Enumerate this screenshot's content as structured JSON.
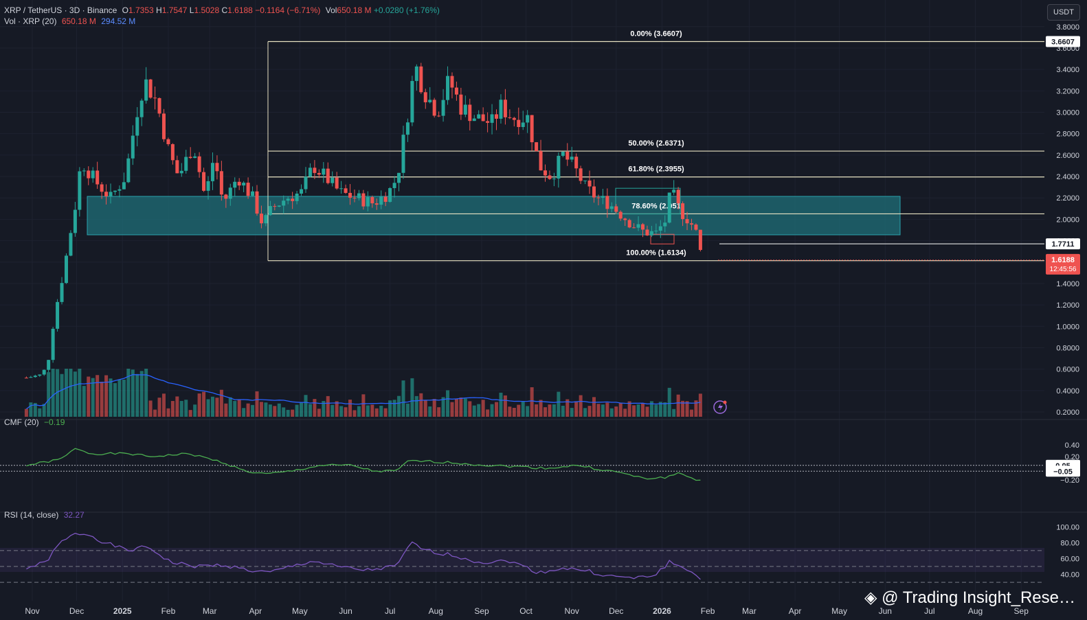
{
  "header": {
    "symbol": "XRP / TetherUS · 3D · Binance",
    "o_label": "O",
    "o": "1.7353",
    "h_label": "H",
    "h": "1.7547",
    "l_label": "L",
    "l": "1.5028",
    "c_label": "C",
    "c": "1.6188",
    "change": "−0.1164 (−6.71%)",
    "vol_label": "Vol",
    "vol": "650.18 M",
    "vol_change": "+0.0280 (+1.76%)"
  },
  "vol_legend": {
    "label": "Vol · XRP (20)",
    "v1": "650.18 M",
    "v2": "294.52 M"
  },
  "cmf_legend": {
    "label": "CMF (20)",
    "value": "−0.19"
  },
  "rsi_legend": {
    "label": "RSI (14, close)",
    "value": "32.27"
  },
  "currency_button": "USDT",
  "watermark": "@ Trading Insight_Rese…",
  "colors": {
    "up": "#26a69a",
    "down": "#ef5350",
    "bg": "#161a25",
    "fib": "#e9e3c3",
    "cmf": "#4caf50",
    "rsi": "#7e57c2",
    "vol_ma": "#2962ff",
    "zone": "#1f6f78"
  },
  "price_axis": {
    "ticks": [
      "3.8000",
      "3.6000",
      "3.4000",
      "3.2000",
      "3.0000",
      "2.8000",
      "2.6000",
      "2.4000",
      "2.2000",
      "2.0000",
      "1.8000",
      "1.6000",
      "1.4000",
      "1.2000",
      "1.0000",
      "0.8000",
      "0.6000",
      "0.4000",
      "0.2000"
    ],
    "badges": [
      "3.6607",
      "1.7711",
      "1.6134"
    ],
    "current_price": "1.6188",
    "countdown": "12:45:56"
  },
  "cmf_axis": {
    "ticks": [
      "0.40",
      "0.20",
      "−0.20"
    ],
    "badges": [
      "0.05",
      "−0.05"
    ]
  },
  "rsi_axis": {
    "ticks": [
      "100.00",
      "80.00",
      "60.00",
      "40.00"
    ]
  },
  "time_axis": [
    "Nov",
    "Dec",
    "2025",
    "Feb",
    "Mar",
    "Apr",
    "May",
    "Jun",
    "Jul",
    "Aug",
    "Sep",
    "Oct",
    "Nov",
    "Dec",
    "2026",
    "Feb",
    "Mar",
    "Apr",
    "May",
    "Jun",
    "Jul",
    "Aug",
    "Sep"
  ],
  "chart_data": {
    "type": "candlestick",
    "y_range": [
      0.2,
      3.9
    ],
    "fib_levels": [
      {
        "label": "0.00% (3.6607)",
        "value": 3.6607
      },
      {
        "label": "50.00% (2.6371)",
        "value": 2.6371
      },
      {
        "label": "61.80% (2.3955)",
        "value": 2.3955
      },
      {
        "label": "78.60% (2.051",
        "value": 2.051
      },
      {
        "label": "100.00% (1.6134)",
        "value": 1.6134
      }
    ],
    "support_zone": [
      1.86,
      2.22
    ],
    "extra_level": 1.7711,
    "price_path": [
      [
        "2024-10-28",
        0.52
      ],
      [
        "2024-11-08",
        0.55
      ],
      [
        "2024-11-12",
        0.7
      ],
      [
        "2024-11-16",
        1.1
      ],
      [
        "2024-11-22",
        1.5
      ],
      [
        "2024-12-01",
        2.2
      ],
      [
        "2024-12-04",
        2.55
      ],
      [
        "2024-12-14",
        2.35
      ],
      [
        "2024-12-24",
        2.2
      ],
      [
        "2025-01-03",
        2.4
      ],
      [
        "2025-01-12",
        3.1
      ],
      [
        "2025-01-16",
        3.3
      ],
      [
        "2025-01-24",
        3.1
      ],
      [
        "2025-02-02",
        2.6
      ],
      [
        "2025-02-08",
        2.4
      ],
      [
        "2025-02-18",
        2.7
      ],
      [
        "2025-02-26",
        2.2
      ],
      [
        "2025-03-04",
        2.6
      ],
      [
        "2025-03-10",
        2.15
      ],
      [
        "2025-03-20",
        2.4
      ],
      [
        "2025-03-30",
        2.2
      ],
      [
        "2025-04-06",
        1.95
      ],
      [
        "2025-04-12",
        2.1
      ],
      [
        "2025-04-22",
        2.2
      ],
      [
        "2025-05-02",
        2.25
      ],
      [
        "2025-05-10",
        2.5
      ],
      [
        "2025-05-18",
        2.4
      ],
      [
        "2025-05-28",
        2.25
      ],
      [
        "2025-06-08",
        2.2
      ],
      [
        "2025-06-20",
        2.15
      ],
      [
        "2025-06-30",
        2.25
      ],
      [
        "2025-07-06",
        2.4
      ],
      [
        "2025-07-12",
        2.9
      ],
      [
        "2025-07-18",
        3.45
      ],
      [
        "2025-07-24",
        3.2
      ],
      [
        "2025-08-02",
        3.0
      ],
      [
        "2025-08-10",
        3.3
      ],
      [
        "2025-08-18",
        3.05
      ],
      [
        "2025-08-28",
        2.95
      ],
      [
        "2025-09-08",
        2.9
      ],
      [
        "2025-09-14",
        3.05
      ],
      [
        "2025-09-22",
        2.95
      ],
      [
        "2025-10-02",
        2.95
      ],
      [
        "2025-10-10",
        2.5
      ],
      [
        "2025-10-18",
        2.4
      ],
      [
        "2025-10-26",
        2.6
      ],
      [
        "2025-11-02",
        2.5
      ],
      [
        "2025-11-10",
        2.3
      ],
      [
        "2025-11-18",
        2.2
      ],
      [
        "2025-11-26",
        2.15
      ],
      [
        "2025-12-04",
        2.05
      ],
      [
        "2025-12-12",
        1.95
      ],
      [
        "2025-12-20",
        1.88
      ],
      [
        "2025-12-28",
        1.87
      ],
      [
        "2026-01-04",
        2.0
      ],
      [
        "2026-01-07",
        2.28
      ],
      [
        "2026-01-13",
        2.08
      ],
      [
        "2026-01-20",
        1.98
      ],
      [
        "2026-01-25",
        1.85
      ],
      [
        "2026-01-28",
        1.62
      ]
    ],
    "cmf_path": [
      [
        "2024-10-28",
        0.05
      ],
      [
        "2024-11-20",
        0.15
      ],
      [
        "2024-12-01",
        0.35
      ],
      [
        "2024-12-10",
        0.25
      ],
      [
        "2025-01-05",
        0.25
      ],
      [
        "2025-01-20",
        0.2
      ],
      [
        "2025-02-15",
        0.25
      ],
      [
        "2025-03-10",
        0.1
      ],
      [
        "2025-03-25",
        -0.05
      ],
      [
        "2025-04-08",
        -0.1
      ],
      [
        "2025-04-25",
        -0.05
      ],
      [
        "2025-05-15",
        0.05
      ],
      [
        "2025-06-05",
        0.05
      ],
      [
        "2025-06-20",
        -0.05
      ],
      [
        "2025-07-05",
        -0.05
      ],
      [
        "2025-07-14",
        0.13
      ],
      [
        "2025-08-10",
        0.1
      ],
      [
        "2025-09-05",
        0.05
      ],
      [
        "2025-09-25",
        0.03
      ],
      [
        "2025-10-15",
        0.0
      ],
      [
        "2025-11-05",
        0.05
      ],
      [
        "2025-11-20",
        -0.02
      ],
      [
        "2025-12-05",
        -0.08
      ],
      [
        "2025-12-20",
        -0.18
      ],
      [
        "2026-01-05",
        -0.15
      ],
      [
        "2026-01-12",
        -0.08
      ],
      [
        "2026-01-25",
        -0.2
      ],
      [
        "2026-01-28",
        -0.19
      ]
    ],
    "rsi_path": [
      [
        "2024-10-28",
        48
      ],
      [
        "2024-11-10",
        55
      ],
      [
        "2024-11-20",
        80
      ],
      [
        "2024-12-01",
        92
      ],
      [
        "2024-12-10",
        90
      ],
      [
        "2024-12-20",
        80
      ],
      [
        "2025-01-05",
        70
      ],
      [
        "2025-01-18",
        75
      ],
      [
        "2025-02-03",
        55
      ],
      [
        "2025-02-20",
        50
      ],
      [
        "2025-03-10",
        52
      ],
      [
        "2025-03-28",
        45
      ],
      [
        "2025-04-10",
        42
      ],
      [
        "2025-04-25",
        50
      ],
      [
        "2025-05-10",
        57
      ],
      [
        "2025-05-25",
        50
      ],
      [
        "2025-06-15",
        45
      ],
      [
        "2025-07-05",
        50
      ],
      [
        "2025-07-16",
        80
      ],
      [
        "2025-07-25",
        70
      ],
      [
        "2025-08-10",
        65
      ],
      [
        "2025-09-01",
        55
      ],
      [
        "2025-09-20",
        57
      ],
      [
        "2025-10-10",
        42
      ],
      [
        "2025-10-25",
        48
      ],
      [
        "2025-11-10",
        45
      ],
      [
        "2025-11-25",
        38
      ],
      [
        "2025-12-15",
        35
      ],
      [
        "2025-12-28",
        40
      ],
      [
        "2026-01-06",
        56
      ],
      [
        "2026-01-15",
        48
      ],
      [
        "2026-01-25",
        40
      ],
      [
        "2026-01-28",
        32.27
      ]
    ]
  }
}
